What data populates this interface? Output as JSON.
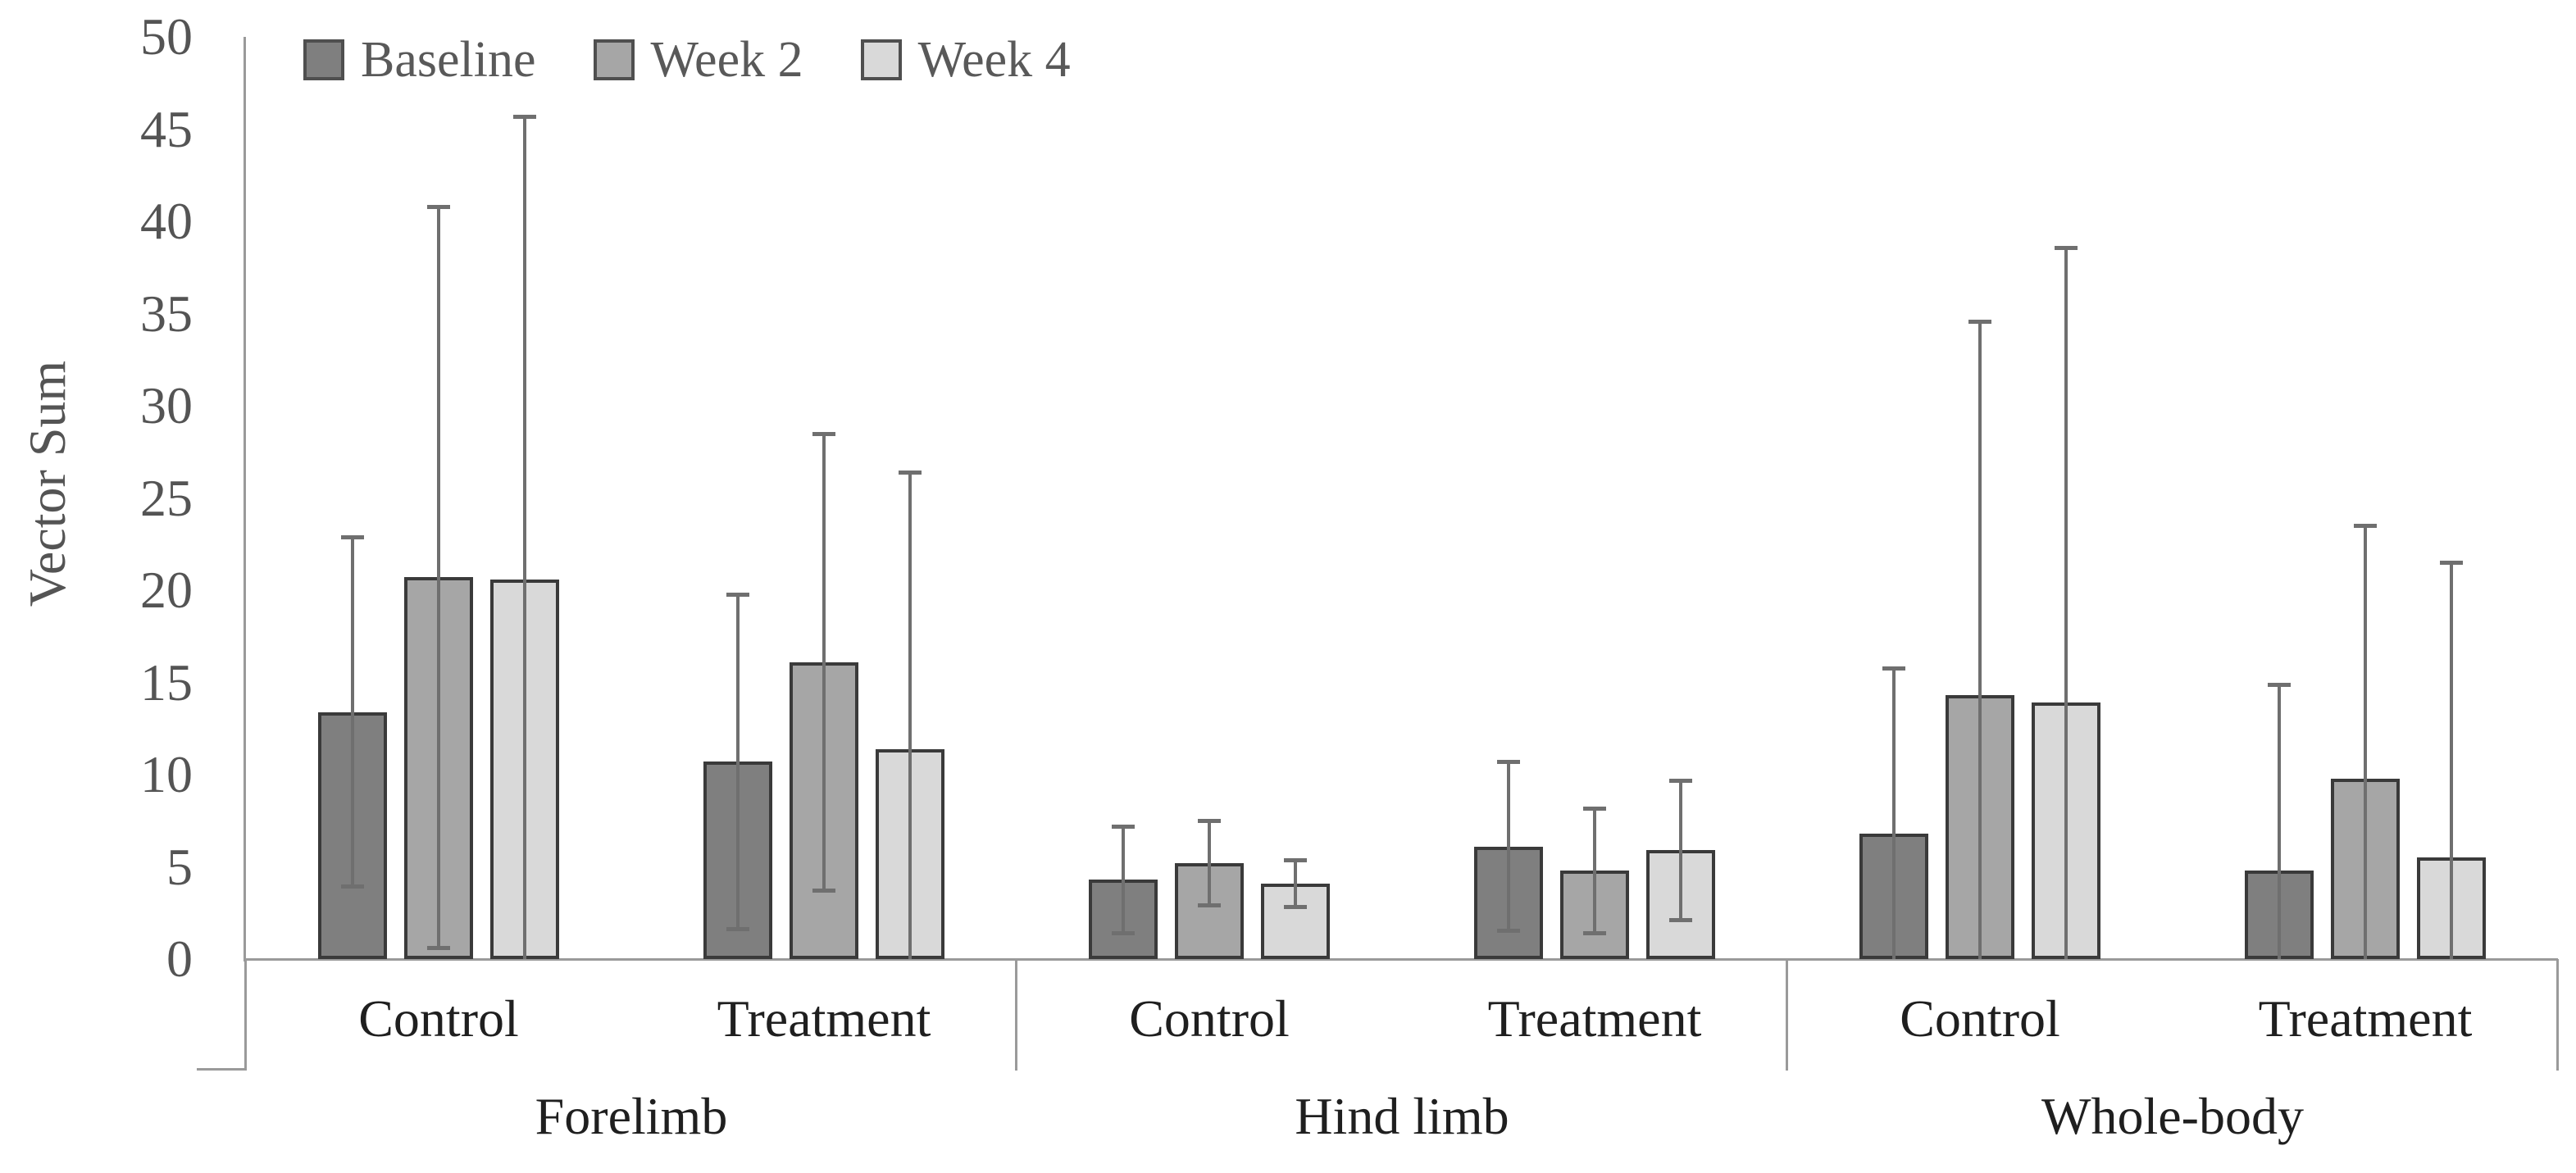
{
  "chart_data": {
    "type": "bar",
    "ylabel": "Vector Sum",
    "ylim": [
      0,
      50
    ],
    "yticks": [
      0,
      5,
      10,
      15,
      20,
      25,
      30,
      35,
      40,
      45,
      50
    ],
    "grid": false,
    "legend_position": "top-left",
    "error_bars": "symmetric whiskers with caps; lower whiskers clipped at 0 (no cap when mean - error < 0)",
    "groups": [
      {
        "label": "Forelimb",
        "subgroups": [
          "Control",
          "Treatment"
        ]
      },
      {
        "label": "Hind limb",
        "subgroups": [
          "Control",
          "Treatment"
        ]
      },
      {
        "label": "Whole-body",
        "subgroups": [
          "Control",
          "Treatment"
        ]
      }
    ],
    "categories": [
      "Forelimb Control",
      "Forelimb Treatment",
      "Hind limb Control",
      "Hind limb Treatment",
      "Whole-body Control",
      "Whole-body Treatment"
    ],
    "series": [
      {
        "name": "Baseline",
        "color": "#7f7f7f",
        "values": [
          13.4,
          10.7,
          4.3,
          6.1,
          6.8,
          4.8
        ],
        "errors": [
          9.5,
          9.1,
          2.9,
          4.6,
          9.0,
          10.1
        ]
      },
      {
        "name": "Week 2",
        "color": "#a6a6a6",
        "values": [
          20.7,
          16.1,
          5.2,
          4.8,
          14.3,
          9.8
        ],
        "errors": [
          20.1,
          12.4,
          2.3,
          3.4,
          20.3,
          13.7
        ]
      },
      {
        "name": "Week 4",
        "color": "#d9d9d9",
        "values": [
          20.6,
          11.4,
          4.1,
          5.9,
          13.9,
          5.5
        ],
        "errors": [
          25.1,
          15.0,
          1.3,
          3.8,
          24.7,
          16.0
        ]
      }
    ]
  }
}
